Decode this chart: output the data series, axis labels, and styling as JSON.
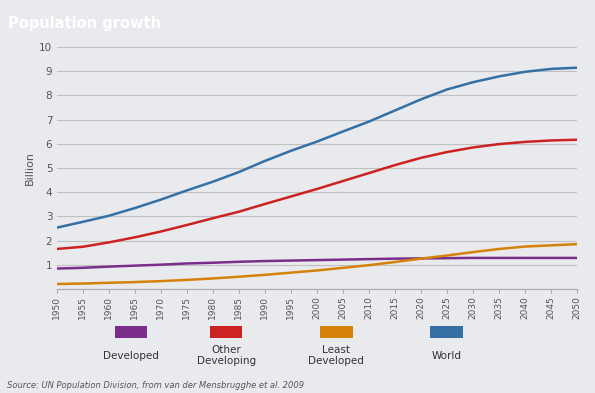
{
  "title": "Population growth",
  "ylabel": "Billion",
  "source": "Source: UN Population Division, from van der Mensbrugghe et al. 2009",
  "background_header": "#787878",
  "background_chart": "#e8eaed",
  "grid_color": "#c0c0c0",
  "years": [
    1950,
    1955,
    1960,
    1965,
    1970,
    1975,
    1980,
    1985,
    1990,
    1995,
    2000,
    2005,
    2010,
    2015,
    2020,
    2025,
    2030,
    2035,
    2040,
    2045,
    2050
  ],
  "world": [
    2.53,
    2.77,
    3.02,
    3.34,
    3.69,
    4.07,
    4.43,
    4.83,
    5.29,
    5.71,
    6.09,
    6.51,
    6.92,
    7.38,
    7.84,
    8.25,
    8.55,
    8.79,
    8.98,
    9.1,
    9.15
  ],
  "other_developing": [
    1.65,
    1.74,
    1.92,
    2.13,
    2.37,
    2.64,
    2.92,
    3.19,
    3.51,
    3.82,
    4.13,
    4.46,
    4.79,
    5.12,
    5.42,
    5.66,
    5.85,
    5.99,
    6.08,
    6.14,
    6.17
  ],
  "developed": [
    0.84,
    0.87,
    0.92,
    0.96,
    1.0,
    1.05,
    1.08,
    1.12,
    1.15,
    1.17,
    1.19,
    1.21,
    1.23,
    1.25,
    1.26,
    1.27,
    1.28,
    1.28,
    1.28,
    1.28,
    1.28
  ],
  "least_developed": [
    0.2,
    0.22,
    0.25,
    0.28,
    0.32,
    0.37,
    0.43,
    0.5,
    0.58,
    0.67,
    0.76,
    0.87,
    0.98,
    1.11,
    1.25,
    1.38,
    1.52,
    1.65,
    1.75,
    1.8,
    1.85
  ],
  "color_world": "#3570a5",
  "color_other_developing": "#cc2222",
  "color_developed": "#7b2d8b",
  "color_least_developed": "#d4820a",
  "ylim": [
    0,
    10
  ],
  "yticks": [
    0,
    1,
    2,
    3,
    4,
    5,
    6,
    7,
    8,
    9,
    10
  ],
  "line_width": 1.8,
  "legend_items": [
    {
      "label": "Developed",
      "color": "#7b2d8b"
    },
    {
      "label": "Other\nDeveloping",
      "color": "#cc2222"
    },
    {
      "label": "Least\nDeveloped",
      "color": "#d4820a"
    },
    {
      "label": "World",
      "color": "#3570a5"
    }
  ]
}
